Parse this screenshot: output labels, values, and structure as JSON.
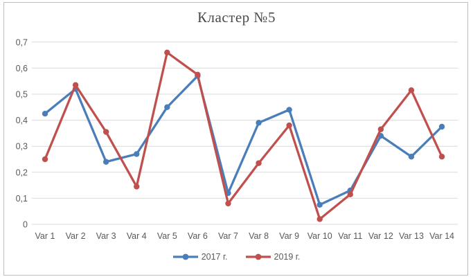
{
  "chart": {
    "title": "Кластер №5"
  },
  "colors": {
    "series_2017": "#4a7ebb",
    "series_2019": "#c0504d",
    "gridline": "#d9d9d9",
    "axis_text": "#595959",
    "title_text": "#4a4a4a",
    "frame_border": "#bdbdbd",
    "background": "#ffffff"
  },
  "chart_data": {
    "type": "line",
    "title": "Кластер №5",
    "categories": [
      "Var 1",
      "Var 2",
      "Var 3",
      "Var 4",
      "Var 5",
      "Var 6",
      "Var 7",
      "Var 8",
      "Var 9",
      "Var 10",
      "Var 11",
      "Var 12",
      "Var 13",
      "Var 14"
    ],
    "series": [
      {
        "name": "2017 г.",
        "color": "#4a7ebb",
        "values": [
          0.425,
          0.52,
          0.24,
          0.27,
          0.45,
          0.57,
          0.12,
          0.39,
          0.44,
          0.075,
          0.13,
          0.34,
          0.26,
          0.375
        ]
      },
      {
        "name": "2019 г.",
        "color": "#c0504d",
        "values": [
          0.25,
          0.535,
          0.355,
          0.145,
          0.66,
          0.575,
          0.08,
          0.235,
          0.38,
          0.02,
          0.115,
          0.365,
          0.515,
          0.26
        ]
      }
    ],
    "xlabel": "",
    "ylabel": "",
    "ylim": [
      0,
      0.7
    ],
    "ytick_step": 0.1,
    "ytick_labels": [
      "0",
      "0,1",
      "0,2",
      "0,3",
      "0,4",
      "0,5",
      "0,6",
      "0,7"
    ],
    "grid": true,
    "legend_position": "bottom",
    "marker": "circle"
  }
}
